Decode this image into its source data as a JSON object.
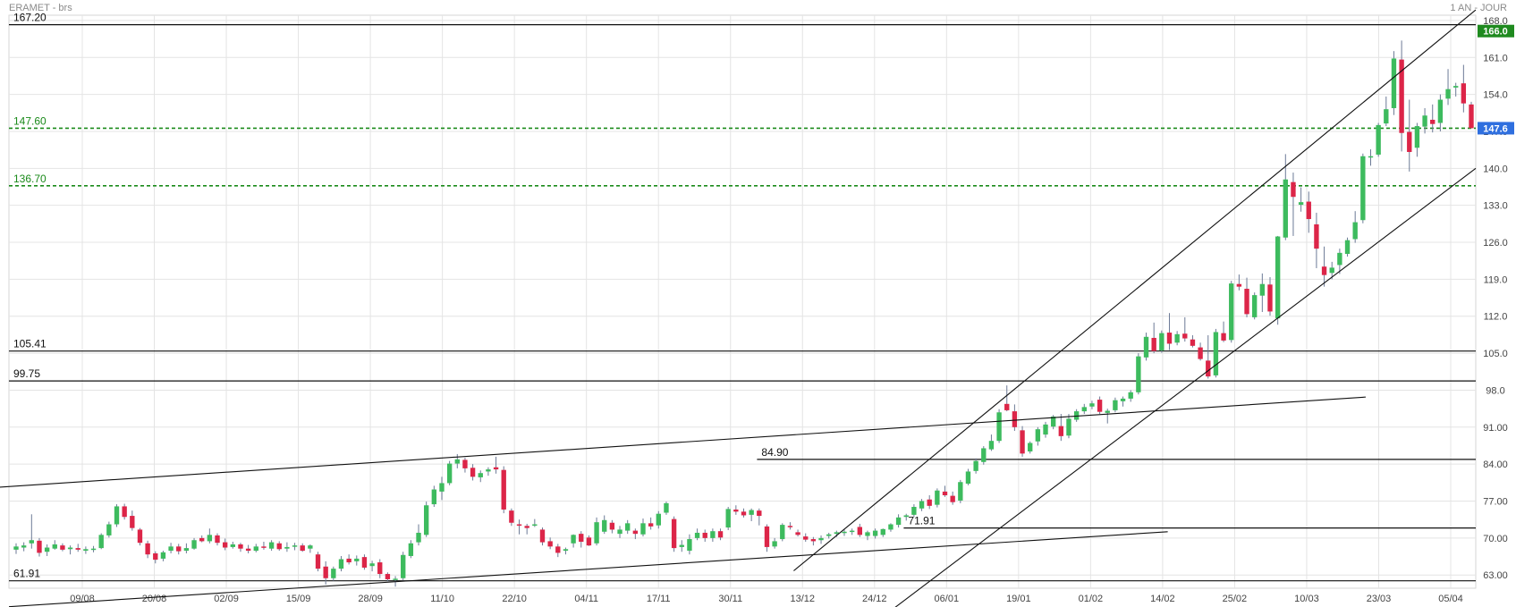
{
  "header": {
    "title": "ERAMET - brs",
    "period": "1 AN - JOUR"
  },
  "chart_data": {
    "type": "candlestick",
    "title": "ERAMET - brs",
    "ylim": [
      60.5,
      169
    ],
    "y_ticks": [
      "168.0",
      "161.0",
      "154.0",
      "147.0",
      "140.0",
      "133.0",
      "126.0",
      "119.0",
      "112.0",
      "105.0",
      "98.0",
      "91.00",
      "84.00",
      "77.00",
      "70.00",
      "63.00"
    ],
    "x_ticks": [
      "09/08",
      "20/08",
      "02/09",
      "15/09",
      "28/09",
      "11/10",
      "22/10",
      "04/11",
      "17/11",
      "30/11",
      "13/12",
      "24/12",
      "06/01",
      "19/01",
      "01/02",
      "14/02",
      "25/02",
      "10/03",
      "23/03",
      "05/04"
    ],
    "grid": true,
    "last_price": {
      "label": "147.6",
      "value": 147.6,
      "color": "#2f6fdf"
    },
    "high_marker": {
      "label": "166.0",
      "value": 166.0,
      "color": "#1f8a1f"
    },
    "candles": [
      [
        67.8,
        69.0,
        67.0,
        68.4
      ],
      [
        68.2,
        69.2,
        67.5,
        68.6
      ],
      [
        69.0,
        74.5,
        68.0,
        69.6
      ],
      [
        69.5,
        70.0,
        66.5,
        67.2
      ],
      [
        67.4,
        68.8,
        66.6,
        68.2
      ],
      [
        68.0,
        69.6,
        67.8,
        68.8
      ],
      [
        68.6,
        69.0,
        67.5,
        67.8
      ],
      [
        67.9,
        68.6,
        66.9,
        68.2
      ],
      [
        68.1,
        68.9,
        67.4,
        67.8
      ],
      [
        67.6,
        68.4,
        67.0,
        67.9
      ],
      [
        67.9,
        68.5,
        67.3,
        68.0
      ],
      [
        68.1,
        70.9,
        67.9,
        70.6
      ],
      [
        70.5,
        73.1,
        70.1,
        72.6
      ],
      [
        72.6,
        76.4,
        72.1,
        76.0
      ],
      [
        76.0,
        76.5,
        73.5,
        74.0
      ],
      [
        74.2,
        75.2,
        71.4,
        71.9
      ],
      [
        71.6,
        71.9,
        68.6,
        69.1
      ],
      [
        69.0,
        69.5,
        66.2,
        66.9
      ],
      [
        67.1,
        67.5,
        65.2,
        65.9
      ],
      [
        66.1,
        67.6,
        65.6,
        67.3
      ],
      [
        67.6,
        69.1,
        67.1,
        68.4
      ],
      [
        68.4,
        68.9,
        66.9,
        67.5
      ],
      [
        67.6,
        69.0,
        67.1,
        68.1
      ],
      [
        68.0,
        70.0,
        67.8,
        69.6
      ],
      [
        70.0,
        70.5,
        69.2,
        69.4
      ],
      [
        69.4,
        71.8,
        69.0,
        70.6
      ],
      [
        70.5,
        70.9,
        68.6,
        69.1
      ],
      [
        69.2,
        69.9,
        67.7,
        68.2
      ],
      [
        68.3,
        69.3,
        68.0,
        68.8
      ],
      [
        68.8,
        69.1,
        67.4,
        68.0
      ],
      [
        68.0,
        68.7,
        67.1,
        67.6
      ],
      [
        67.6,
        68.9,
        67.3,
        68.4
      ],
      [
        68.4,
        69.3,
        67.8,
        68.2
      ],
      [
        68.0,
        69.6,
        67.6,
        69.2
      ],
      [
        69.0,
        69.4,
        67.6,
        67.9
      ],
      [
        68.0,
        69.2,
        67.4,
        68.3
      ],
      [
        68.4,
        69.1,
        67.7,
        68.6
      ],
      [
        68.6,
        69.0,
        67.4,
        67.6
      ],
      [
        68.0,
        68.8,
        67.2,
        68.6
      ],
      [
        66.9,
        67.4,
        63.7,
        64.2
      ],
      [
        64.6,
        65.6,
        61.2,
        62.4
      ],
      [
        62.4,
        64.6,
        61.9,
        64.2
      ],
      [
        64.2,
        66.6,
        63.7,
        66.0
      ],
      [
        66.1,
        66.9,
        65.0,
        65.4
      ],
      [
        65.6,
        66.7,
        64.8,
        66.1
      ],
      [
        66.4,
        66.9,
        64.0,
        64.4
      ],
      [
        64.7,
        65.7,
        63.7,
        65.2
      ],
      [
        65.4,
        66.0,
        62.4,
        63.2
      ],
      [
        63.2,
        63.5,
        61.8,
        62.2
      ],
      [
        62.1,
        62.8,
        60.8,
        62.3
      ],
      [
        62.4,
        67.4,
        62.0,
        66.8
      ],
      [
        66.6,
        69.6,
        66.2,
        69.0
      ],
      [
        69.2,
        72.6,
        68.6,
        71.0
      ],
      [
        70.6,
        76.9,
        70.2,
        76.2
      ],
      [
        76.4,
        79.9,
        75.9,
        79.2
      ],
      [
        78.8,
        81.6,
        77.2,
        80.4
      ],
      [
        80.4,
        84.6,
        80.0,
        84.1
      ],
      [
        84.1,
        85.9,
        83.2,
        84.9
      ],
      [
        84.8,
        85.2,
        82.4,
        83.2
      ],
      [
        83.3,
        84.0,
        80.9,
        81.6
      ],
      [
        81.5,
        82.8,
        80.6,
        82.3
      ],
      [
        82.6,
        83.4,
        81.8,
        83.0
      ],
      [
        83.4,
        85.4,
        82.2,
        83.0
      ],
      [
        82.9,
        83.6,
        74.7,
        75.4
      ],
      [
        75.2,
        75.6,
        72.3,
        72.9
      ],
      [
        72.6,
        73.5,
        70.7,
        72.4
      ],
      [
        72.3,
        72.7,
        70.7,
        71.9
      ],
      [
        72.4,
        73.6,
        72.1,
        72.6
      ],
      [
        71.6,
        72.0,
        68.6,
        69.2
      ],
      [
        69.4,
        70.1,
        67.9,
        68.4
      ],
      [
        68.4,
        68.9,
        66.4,
        67.2
      ],
      [
        67.6,
        68.2,
        66.9,
        67.9
      ],
      [
        69.0,
        70.7,
        68.2,
        70.6
      ],
      [
        70.8,
        71.3,
        68.2,
        69.3
      ],
      [
        70.1,
        70.5,
        68.5,
        68.6
      ],
      [
        69.0,
        73.9,
        68.6,
        73.0
      ],
      [
        71.2,
        74.3,
        70.8,
        73.4
      ],
      [
        72.9,
        73.4,
        70.9,
        71.6
      ],
      [
        70.8,
        72.3,
        70.0,
        71.6
      ],
      [
        71.4,
        73.4,
        70.8,
        72.8
      ],
      [
        71.4,
        71.8,
        69.8,
        70.8
      ],
      [
        70.7,
        73.7,
        70.3,
        72.8
      ],
      [
        72.8,
        73.9,
        71.6,
        72.2
      ],
      [
        72.4,
        75.1,
        71.8,
        74.6
      ],
      [
        74.8,
        76.9,
        74.4,
        76.6
      ],
      [
        73.6,
        74.1,
        67.4,
        68.1
      ],
      [
        68.3,
        69.6,
        67.4,
        68.7
      ],
      [
        67.6,
        70.7,
        66.9,
        69.8
      ],
      [
        70.0,
        71.8,
        69.6,
        71.0
      ],
      [
        71.0,
        71.6,
        69.3,
        70.0
      ],
      [
        70.0,
        71.8,
        69.3,
        71.3
      ],
      [
        71.3,
        71.8,
        69.6,
        70.1
      ],
      [
        72.0,
        75.9,
        71.5,
        75.5
      ],
      [
        75.4,
        76.2,
        74.4,
        75.0
      ],
      [
        75.0,
        75.6,
        73.9,
        74.3
      ],
      [
        74.4,
        75.6,
        73.2,
        75.3
      ],
      [
        75.2,
        75.6,
        72.4,
        74.2
      ],
      [
        72.2,
        72.6,
        67.4,
        68.3
      ],
      [
        68.4,
        70.0,
        68.0,
        69.4
      ],
      [
        69.8,
        72.8,
        69.4,
        72.5
      ],
      [
        72.3,
        73.0,
        71.6,
        72.2
      ],
      [
        71.1,
        71.6,
        70.3,
        70.6
      ],
      [
        70.3,
        70.9,
        69.3,
        69.7
      ],
      [
        69.8,
        70.2,
        68.6,
        69.4
      ],
      [
        69.6,
        70.5,
        68.9,
        70.0
      ],
      [
        70.4,
        71.0,
        69.9,
        70.7
      ],
      [
        70.8,
        71.4,
        70.2,
        71.1
      ],
      [
        71.0,
        71.6,
        70.4,
        71.2
      ],
      [
        71.2,
        71.8,
        70.6,
        71.4
      ],
      [
        72.1,
        72.7,
        70.2,
        70.6
      ],
      [
        70.4,
        71.4,
        69.6,
        71.1
      ],
      [
        70.4,
        71.8,
        69.9,
        71.4
      ],
      [
        70.6,
        71.8,
        70.2,
        71.7
      ],
      [
        71.6,
        72.8,
        71.2,
        72.6
      ],
      [
        72.5,
        74.5,
        72.0,
        73.9
      ],
      [
        74.0,
        74.6,
        73.3,
        74.3
      ],
      [
        74.4,
        76.4,
        74.0,
        75.9
      ],
      [
        75.6,
        77.4,
        75.1,
        77.0
      ],
      [
        77.3,
        78.1,
        75.5,
        76.1
      ],
      [
        76.3,
        79.4,
        75.8,
        79.0
      ],
      [
        78.8,
        79.9,
        77.8,
        78.1
      ],
      [
        78.0,
        78.8,
        76.3,
        76.8
      ],
      [
        77.1,
        81.0,
        76.6,
        80.6
      ],
      [
        80.3,
        83.1,
        80.0,
        82.6
      ],
      [
        82.7,
        85.1,
        82.2,
        84.6
      ],
      [
        84.4,
        87.4,
        83.9,
        87.0
      ],
      [
        86.8,
        89.6,
        86.5,
        88.4
      ],
      [
        88.4,
        94.4,
        88.0,
        93.8
      ],
      [
        95.4,
        98.9,
        94.0,
        94.2
      ],
      [
        94.0,
        95.3,
        90.3,
        91.0
      ],
      [
        90.4,
        91.2,
        85.4,
        86.0
      ],
      [
        86.4,
        88.3,
        86.0,
        88.0
      ],
      [
        88.3,
        91.0,
        87.5,
        90.6
      ],
      [
        89.6,
        92.0,
        89.0,
        91.5
      ],
      [
        91.1,
        93.3,
        90.6,
        93.0
      ],
      [
        91.2,
        93.5,
        88.4,
        89.3
      ],
      [
        89.4,
        93.5,
        88.9,
        92.6
      ],
      [
        92.4,
        94.4,
        92.0,
        94.0
      ],
      [
        94.0,
        95.4,
        93.5,
        94.8
      ],
      [
        94.9,
        96.0,
        94.4,
        95.5
      ],
      [
        96.2,
        96.8,
        93.5,
        93.9
      ],
      [
        93.7,
        94.5,
        91.7,
        94.1
      ],
      [
        94.2,
        96.6,
        93.8,
        96.1
      ],
      [
        95.9,
        96.8,
        94.9,
        96.4
      ],
      [
        96.4,
        98.0,
        95.8,
        97.6
      ],
      [
        97.6,
        105.0,
        97.2,
        104.4
      ],
      [
        104.2,
        108.9,
        103.6,
        108.1
      ],
      [
        107.9,
        110.8,
        105.0,
        105.4
      ],
      [
        105.5,
        109.3,
        105.1,
        108.8
      ],
      [
        108.9,
        112.6,
        105.6,
        106.8
      ],
      [
        107.0,
        109.2,
        106.5,
        108.6
      ],
      [
        108.7,
        111.8,
        107.2,
        107.8
      ],
      [
        107.6,
        108.4,
        106.1,
        106.4
      ],
      [
        106.1,
        107.0,
        103.6,
        103.9
      ],
      [
        103.6,
        108.4,
        100.2,
        100.6
      ],
      [
        100.8,
        109.6,
        100.4,
        109.0
      ],
      [
        108.8,
        111.0,
        107.1,
        107.4
      ],
      [
        107.5,
        118.7,
        107.0,
        118.2
      ],
      [
        118.1,
        119.9,
        116.9,
        117.6
      ],
      [
        117.2,
        119.3,
        111.8,
        112.4
      ],
      [
        111.8,
        116.5,
        111.4,
        116.0
      ],
      [
        115.9,
        120.1,
        112.8,
        118.1
      ],
      [
        118.0,
        119.4,
        112.1,
        112.9
      ],
      [
        111.6,
        127.2,
        110.4,
        127.1
      ],
      [
        126.9,
        142.7,
        126.4,
        137.9
      ],
      [
        137.4,
        139.2,
        127.2,
        134.6
      ],
      [
        133.1,
        136.4,
        131.8,
        133.6
      ],
      [
        133.7,
        135.6,
        127.8,
        130.4
      ],
      [
        129.4,
        131.6,
        121.1,
        124.8
      ],
      [
        121.4,
        125.2,
        117.6,
        119.8
      ],
      [
        120.2,
        122.3,
        119.0,
        121.2
      ],
      [
        121.7,
        124.8,
        120.0,
        124.0
      ],
      [
        123.8,
        126.9,
        123.3,
        126.4
      ],
      [
        126.6,
        131.9,
        125.9,
        129.8
      ],
      [
        130.2,
        142.8,
        129.6,
        142.3
      ],
      [
        142.1,
        143.6,
        140.5,
        142.3
      ],
      [
        142.6,
        148.6,
        142.2,
        148.2
      ],
      [
        148.5,
        153.6,
        148.0,
        151.2
      ],
      [
        151.4,
        162.2,
        150.1,
        160.8
      ],
      [
        160.6,
        164.2,
        143.2,
        146.7
      ],
      [
        146.9,
        153.0,
        139.4,
        143.1
      ],
      [
        143.9,
        148.6,
        142.2,
        148.0
      ],
      [
        147.9,
        151.4,
        146.6,
        150.0
      ],
      [
        149.2,
        152.1,
        146.8,
        148.4
      ],
      [
        148.6,
        154.0,
        147.0,
        153.0
      ],
      [
        153.2,
        158.8,
        152.0,
        155.0
      ],
      [
        155.3,
        156.2,
        153.6,
        155.6
      ],
      [
        156.1,
        159.6,
        150.6,
        152.3
      ],
      [
        152.1,
        152.6,
        147.6,
        147.6
      ]
    ],
    "levels": [
      {
        "label": "167.20",
        "value": 167.2,
        "style": "solid",
        "color": "#111111"
      },
      {
        "label": "147.60",
        "value": 147.6,
        "style": "dashed",
        "color": "#1a8a1a"
      },
      {
        "label": "136.70",
        "value": 136.7,
        "style": "dashed",
        "color": "#1a8a1a"
      },
      {
        "label": "105.41",
        "value": 105.41,
        "style": "solid",
        "color": "#111111"
      },
      {
        "label": "99.75",
        "value": 99.75,
        "style": "solid",
        "color": "#111111"
      },
      {
        "label": "84.90",
        "value": 84.9,
        "style": "solid",
        "color": "#111111",
        "from": 0.51
      },
      {
        "label": "71.91",
        "value": 71.91,
        "style": "solid",
        "color": "#111111",
        "from": 0.61
      },
      {
        "label": "61.91",
        "value": 61.91,
        "style": "solid",
        "color": "#111111"
      }
    ],
    "trendlines": [
      {
        "x1": -0.03,
        "y1": 79.2,
        "x2": 0.925,
        "y2": 96.7
      },
      {
        "x1": 0.0,
        "y1": 57.0,
        "x2": 0.79,
        "y2": 71.2
      },
      {
        "x1": 0.535,
        "y1": 63.8,
        "x2": 1.0,
        "y2": 170.0
      },
      {
        "x1": 0.6,
        "y1": 56.0,
        "x2": 1.0,
        "y2": 140.0
      }
    ],
    "colors": {
      "up": "#3dbb5e",
      "down": "#dc2548",
      "grid": "#e4e4e4",
      "axis_text": "#444444"
    }
  }
}
